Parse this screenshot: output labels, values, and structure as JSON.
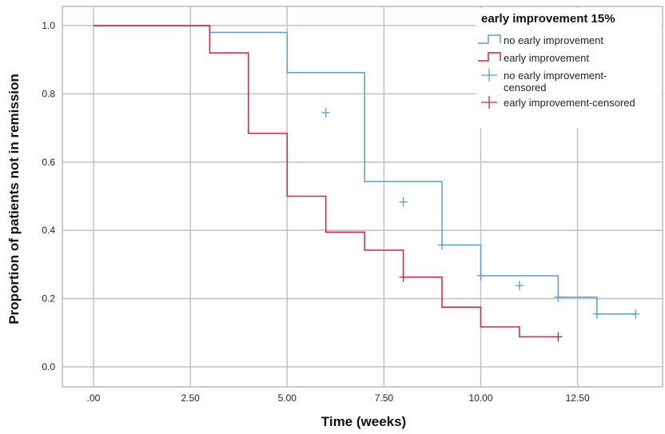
{
  "chart_data": {
    "type": "line",
    "subtype": "kaplan-meier step",
    "title": "",
    "xlabel": "Time (weeks)",
    "ylabel": "Proportion of patients not in remission",
    "xlim": [
      0,
      14.6
    ],
    "ylim": [
      -0.05,
      1.05
    ],
    "x_ticks": [
      0,
      2.5,
      5,
      7.5,
      10,
      12.5
    ],
    "x_tick_labels": [
      ".00",
      "2.50",
      "5.00",
      "7.50",
      "10.00",
      "12.50"
    ],
    "y_ticks": [
      0,
      0.2,
      0.4,
      0.6,
      0.8,
      1.0
    ],
    "y_tick_labels": [
      "0.0",
      "0.2",
      "0.4",
      "0.6",
      "0.8",
      "1.0"
    ],
    "grid": true,
    "legend": {
      "title": "early improvement 15%",
      "placement": "top-right",
      "entries": [
        {
          "label": "no early improvement",
          "kind": "step",
          "color": "#5b9bd5"
        },
        {
          "label": "early improvement",
          "kind": "step",
          "color": "#d6204e"
        },
        {
          "label": "no early improvement-censored",
          "label_lines": [
            "no early improvement-",
            "censored"
          ],
          "kind": "censor",
          "color": "#5b9bd5"
        },
        {
          "label": "early improvement-censored",
          "kind": "censor",
          "color": "#d6204e"
        }
      ]
    },
    "series": [
      {
        "name": "no early improvement",
        "color": "#5b9bd5",
        "steps": [
          [
            0,
            1.0
          ],
          [
            3,
            0.98
          ],
          [
            5,
            0.862
          ],
          [
            7,
            0.543
          ],
          [
            9,
            0.357
          ],
          [
            10,
            0.267
          ],
          [
            12,
            0.204
          ],
          [
            13,
            0.155
          ],
          [
            14,
            0.155
          ]
        ],
        "censored": [
          [
            6,
            0.745
          ],
          [
            8,
            0.483
          ],
          [
            9,
            0.357
          ],
          [
            10,
            0.267
          ],
          [
            11,
            0.238
          ],
          [
            12,
            0.204
          ],
          [
            13,
            0.155
          ],
          [
            14,
            0.155
          ]
        ]
      },
      {
        "name": "early improvement",
        "color": "#d6204e",
        "steps": [
          [
            0,
            1.0
          ],
          [
            3,
            0.92
          ],
          [
            4,
            0.684
          ],
          [
            5,
            0.5
          ],
          [
            6,
            0.395
          ],
          [
            7,
            0.342
          ],
          [
            8,
            0.263
          ],
          [
            9,
            0.175
          ],
          [
            10,
            0.117
          ],
          [
            11,
            0.088
          ],
          [
            12,
            0.088
          ]
        ],
        "censored": [
          [
            8,
            0.263
          ],
          [
            12,
            0.088
          ]
        ]
      }
    ]
  }
}
